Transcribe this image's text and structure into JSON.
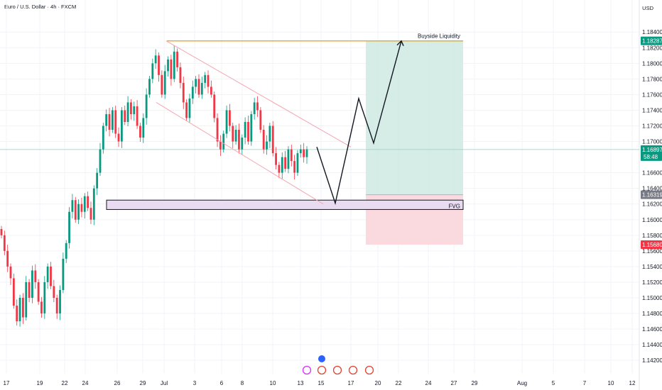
{
  "header": {
    "title": "Euro / U.S. Dollar · 4h · FXCM",
    "currency": "USD"
  },
  "colors": {
    "up": "#089981",
    "down": "#f23645",
    "grid": "#f0f3fa",
    "text": "#131722",
    "target_zone": "#cfe9e2",
    "stop_zone": "#fad6da",
    "fvg": "#eadcf0",
    "liquidity": "#f7a600",
    "channel": "#f4a6b1",
    "buyside_text": "#2962ff",
    "fvg_text": "#f23645",
    "current_tag": "#089981",
    "stop_tag": "#f23645",
    "entry_tag": "#787b86"
  },
  "chart_data": {
    "type": "candlestick",
    "y_axis": {
      "ticks": [
        "1.18400",
        "1.18200",
        "1.18000",
        "1.17800",
        "1.17600",
        "1.17400",
        "1.17200",
        "1.17000",
        "1.16600",
        "1.16400",
        "1.16200",
        "1.16000",
        "1.15800",
        "1.15600",
        "1.15400",
        "1.15200",
        "1.15000",
        "1.14800",
        "1.14600",
        "1.14400",
        "1.14200"
      ],
      "range": [
        1.1412,
        1.1852
      ]
    },
    "x_axis": {
      "ticks": [
        "17",
        "19",
        "22",
        "24",
        "26",
        "29",
        "Jul",
        "3",
        "6",
        "8",
        "10",
        "13",
        "15",
        "17",
        "20",
        "22",
        "24",
        "27",
        "29",
        "Aug",
        "5",
        "7",
        "10",
        "12"
      ]
    },
    "price_tags": [
      {
        "label": "1.18287",
        "value": 1.18287,
        "kind": "target"
      },
      {
        "label": "1.16897",
        "sub": "58:48",
        "value": 1.16897,
        "kind": "current"
      },
      {
        "label": "1.16319",
        "value": 1.16319,
        "kind": "entry"
      },
      {
        "label": "1.15680",
        "value": 1.1568,
        "kind": "stop"
      }
    ],
    "annotations": {
      "buyside": "Buyside Liquidity",
      "fvg": "FVG"
    },
    "ohlc_path": [
      1.158,
      1.156,
      1.154,
      1.1525,
      1.149,
      1.147,
      1.15,
      1.1475,
      1.152,
      1.15,
      1.1535,
      1.152,
      1.1495,
      1.148,
      1.152,
      1.154,
      1.1515,
      1.15,
      1.148,
      1.151,
      1.155,
      1.157,
      1.161,
      1.1625,
      1.16,
      1.162,
      1.161,
      1.163,
      1.1615,
      1.16,
      1.164,
      1.166,
      1.169,
      1.172,
      1.1735,
      1.1715,
      1.174,
      1.171,
      1.17,
      1.174,
      1.1725,
      1.175,
      1.1735,
      1.1745,
      1.172,
      1.1705,
      1.173,
      1.176,
      1.178,
      1.18,
      1.181,
      1.1785,
      1.176,
      1.179,
      1.1805,
      1.178,
      1.1815,
      1.1795,
      1.1775,
      1.175,
      1.173,
      1.1755,
      1.177,
      1.178,
      1.176,
      1.1775,
      1.1785,
      1.177,
      1.176,
      1.173,
      1.17,
      1.169,
      1.171,
      1.174,
      1.172,
      1.17,
      1.1715,
      1.169,
      1.1705,
      1.1725,
      1.17,
      1.1735,
      1.175,
      1.174,
      1.1715,
      1.169,
      1.17,
      1.172,
      1.1685,
      1.167,
      1.166,
      1.168,
      1.1665,
      1.169,
      1.1675,
      1.166,
      1.1685,
      1.169,
      1.168,
      1.169
    ]
  }
}
